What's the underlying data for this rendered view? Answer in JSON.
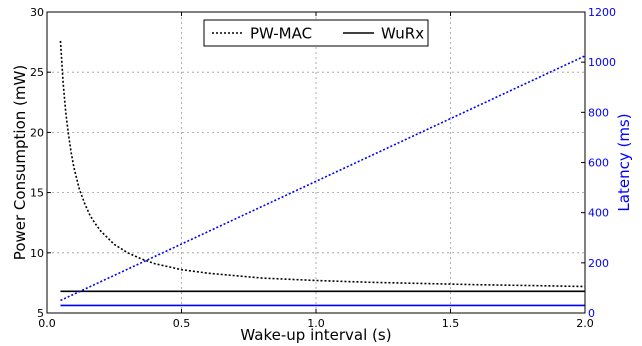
{
  "chart_data": {
    "type": "line",
    "xlabel": "Wake-up interval (s)",
    "ylabel": "Power Consumption (mW)",
    "ylabel_right": "Latency (ms)",
    "xlim": [
      0.0,
      2.0
    ],
    "ylim": [
      5,
      30
    ],
    "ylim_right": [
      0,
      1200
    ],
    "xticks": [
      "0.0",
      "0.5",
      "1.0",
      "1.5",
      "2.0"
    ],
    "yticks": [
      "5",
      "10",
      "15",
      "20",
      "25",
      "30"
    ],
    "yticks_right": [
      "0",
      "200",
      "400",
      "600",
      "800",
      "1000",
      "1200"
    ],
    "grid": true,
    "legend_position": "top-center",
    "series": [
      {
        "name": "PW-MAC",
        "axis": "left",
        "style": "dotted",
        "color": "#000000",
        "legend": true,
        "x": [
          0.05,
          0.06,
          0.07,
          0.08,
          0.09,
          0.1,
          0.12,
          0.14,
          0.16,
          0.18,
          0.2,
          0.25,
          0.3,
          0.35,
          0.4,
          0.5,
          0.6,
          0.7,
          0.8,
          0.9,
          1.0,
          1.2,
          1.4,
          1.6,
          1.8,
          2.0
        ],
        "y": [
          27.6,
          24.1,
          21.6,
          19.8,
          18.3,
          17.1,
          15.3,
          14.1,
          13.1,
          12.4,
          11.8,
          10.7,
          10.0,
          9.5,
          9.1,
          8.6,
          8.3,
          8.1,
          7.9,
          7.8,
          7.7,
          7.55,
          7.45,
          7.35,
          7.28,
          7.2
        ]
      },
      {
        "name": "WuRx",
        "axis": "left",
        "style": "solid",
        "color": "#000000",
        "legend": true,
        "x": [
          0.05,
          2.0
        ],
        "y": [
          6.8,
          6.8
        ]
      },
      {
        "axis": "right",
        "style": "dotted",
        "color": "#0000ff",
        "legend": false,
        "x": [
          0.05,
          2.0
        ],
        "y": [
          50,
          1025
        ]
      },
      {
        "axis": "right",
        "style": "solid",
        "color": "#0000ff",
        "legend": false,
        "x": [
          0.05,
          2.0
        ],
        "y": [
          30,
          30
        ]
      }
    ]
  }
}
